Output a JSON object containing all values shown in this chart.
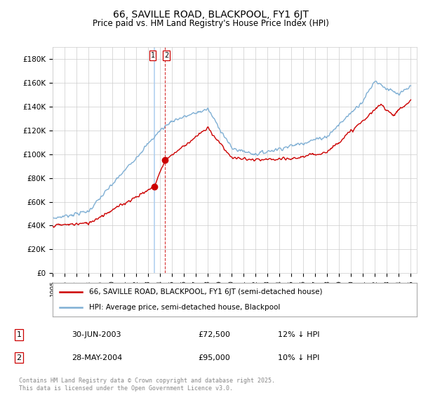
{
  "title": "66, SAVILLE ROAD, BLACKPOOL, FY1 6JT",
  "subtitle": "Price paid vs. HM Land Registry's House Price Index (HPI)",
  "legend1": "66, SAVILLE ROAD, BLACKPOOL, FY1 6JT (semi-detached house)",
  "legend2": "HPI: Average price, semi-detached house, Blackpool",
  "transaction1_date": "30-JUN-2003",
  "transaction1_price": "£72,500",
  "transaction1_hpi": "12% ↓ HPI",
  "transaction2_date": "28-MAY-2004",
  "transaction2_price": "£95,000",
  "transaction2_hpi": "10% ↓ HPI",
  "footer": "Contains HM Land Registry data © Crown copyright and database right 2025.\nThis data is licensed under the Open Government Licence v3.0.",
  "line_color_red": "#cc0000",
  "line_color_blue": "#7fafd4",
  "vline1_color": "#aaccee",
  "vline2_color": "#cc0000",
  "grid_color": "#cccccc",
  "background_color": "#ffffff",
  "ylim": [
    0,
    190000
  ],
  "yticks": [
    0,
    20000,
    40000,
    60000,
    80000,
    100000,
    120000,
    140000,
    160000,
    180000
  ],
  "marker1_year": 2003.5,
  "marker2_year": 2004.4,
  "marker1_price_red": 72500,
  "marker2_price_red": 95000
}
